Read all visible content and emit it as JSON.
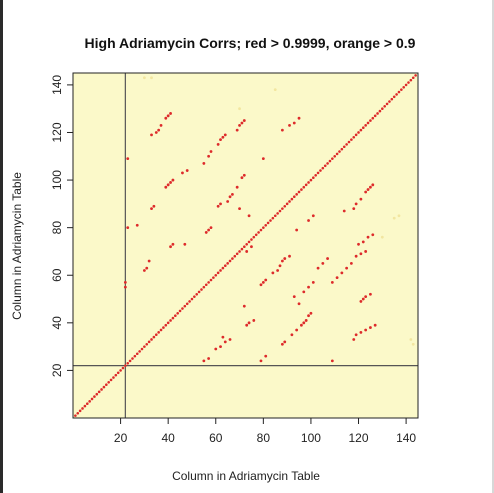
{
  "chart_data": {
    "type": "scatter",
    "title": "High Adriamycin Corrs; red > 0.9999, orange > 0.9",
    "xlabel": "Column in Adriamycin Table",
    "ylabel": "Column in Adriamycin Table",
    "xlim": [
      0,
      145
    ],
    "ylim": [
      0,
      145
    ],
    "xticks": [
      20,
      40,
      60,
      80,
      100,
      120,
      140
    ],
    "yticks": [
      20,
      40,
      60,
      80,
      100,
      120,
      140
    ],
    "grid": false,
    "background": "#fbf9c9",
    "reference_lines": {
      "vertical_x": 22,
      "horizontal_y": 22
    },
    "series": [
      {
        "color": "#dd2b2b",
        "points": [
          [
            22,
            55
          ],
          [
            22,
            57
          ],
          [
            23,
            109
          ],
          [
            23,
            80
          ],
          [
            27,
            81
          ],
          [
            30,
            62
          ],
          [
            31,
            63
          ],
          [
            32,
            66
          ],
          [
            33,
            88
          ],
          [
            34,
            89
          ],
          [
            33,
            119
          ],
          [
            35,
            120
          ],
          [
            36,
            121
          ],
          [
            37,
            123
          ],
          [
            39,
            97
          ],
          [
            40,
            98
          ],
          [
            41,
            99
          ],
          [
            42,
            100
          ],
          [
            41,
            72
          ],
          [
            42,
            73
          ],
          [
            39,
            126
          ],
          [
            40,
            127
          ],
          [
            41,
            128
          ],
          [
            46,
            103
          ],
          [
            48,
            104
          ],
          [
            47,
            73
          ],
          [
            56,
            78
          ],
          [
            57,
            79
          ],
          [
            58,
            80
          ],
          [
            55,
            107
          ],
          [
            57,
            110
          ],
          [
            58,
            112
          ],
          [
            61,
            115
          ],
          [
            62,
            117
          ],
          [
            63,
            118
          ],
          [
            64,
            119
          ],
          [
            61,
            89
          ],
          [
            62,
            90
          ],
          [
            65,
            91
          ],
          [
            66,
            93
          ],
          [
            67,
            94
          ],
          [
            69,
            121
          ],
          [
            70,
            123
          ],
          [
            71,
            124
          ],
          [
            72,
            125
          ],
          [
            71,
            101
          ],
          [
            72,
            102
          ],
          [
            69,
            97
          ],
          [
            74,
            85
          ],
          [
            70,
            88
          ],
          [
            55,
            24
          ],
          [
            57,
            25
          ],
          [
            60,
            29
          ],
          [
            62,
            30
          ],
          [
            64,
            32
          ],
          [
            66,
            33
          ],
          [
            73,
            39
          ],
          [
            74,
            40
          ],
          [
            76,
            41
          ],
          [
            72,
            47
          ],
          [
            63,
            34
          ],
          [
            73,
            70
          ],
          [
            75,
            72
          ],
          [
            79,
            56
          ],
          [
            80,
            57
          ],
          [
            81,
            58
          ],
          [
            80,
            109
          ],
          [
            79,
            24
          ],
          [
            81,
            26
          ],
          [
            84,
            61
          ],
          [
            86,
            62
          ],
          [
            87,
            64
          ],
          [
            88,
            66
          ],
          [
            89,
            67
          ],
          [
            91,
            68
          ],
          [
            88,
            121
          ],
          [
            91,
            123
          ],
          [
            93,
            124
          ],
          [
            95,
            126
          ],
          [
            92,
            35
          ],
          [
            94,
            37
          ],
          [
            96,
            39
          ],
          [
            97,
            40
          ],
          [
            98,
            41
          ],
          [
            99,
            43
          ],
          [
            100,
            44
          ],
          [
            88,
            31
          ],
          [
            89,
            32
          ],
          [
            93,
            51
          ],
          [
            97,
            53
          ],
          [
            99,
            55
          ],
          [
            101,
            57
          ],
          [
            95,
            48
          ],
          [
            94,
            79
          ],
          [
            99,
            83
          ],
          [
            101,
            85
          ],
          [
            103,
            63
          ],
          [
            105,
            65
          ],
          [
            107,
            67
          ],
          [
            109,
            57
          ],
          [
            111,
            59
          ],
          [
            113,
            61
          ],
          [
            115,
            63
          ],
          [
            117,
            65
          ],
          [
            119,
            68
          ],
          [
            121,
            69
          ],
          [
            123,
            70
          ],
          [
            109,
            24
          ],
          [
            114,
            87
          ],
          [
            118,
            88
          ],
          [
            119,
            90
          ],
          [
            121,
            92
          ],
          [
            123,
            95
          ],
          [
            124,
            96
          ],
          [
            125,
            97
          ],
          [
            126,
            98
          ],
          [
            118,
            33
          ],
          [
            119,
            35
          ],
          [
            121,
            36
          ],
          [
            123,
            37
          ],
          [
            125,
            38
          ],
          [
            127,
            39
          ],
          [
            120,
            73
          ],
          [
            122,
            74
          ],
          [
            124,
            76
          ],
          [
            126,
            77
          ],
          [
            121,
            49
          ],
          [
            122,
            50
          ],
          [
            123,
            51
          ],
          [
            125,
            52
          ]
        ]
      },
      {
        "color": "#f2e6a0",
        "points": [
          [
            30,
            143
          ],
          [
            33,
            143
          ],
          [
            135,
            84
          ],
          [
            137,
            85
          ],
          [
            143,
            31
          ],
          [
            142,
            33
          ],
          [
            130,
            76
          ],
          [
            70,
            130
          ],
          [
            85,
            138
          ]
        ]
      }
    ]
  }
}
